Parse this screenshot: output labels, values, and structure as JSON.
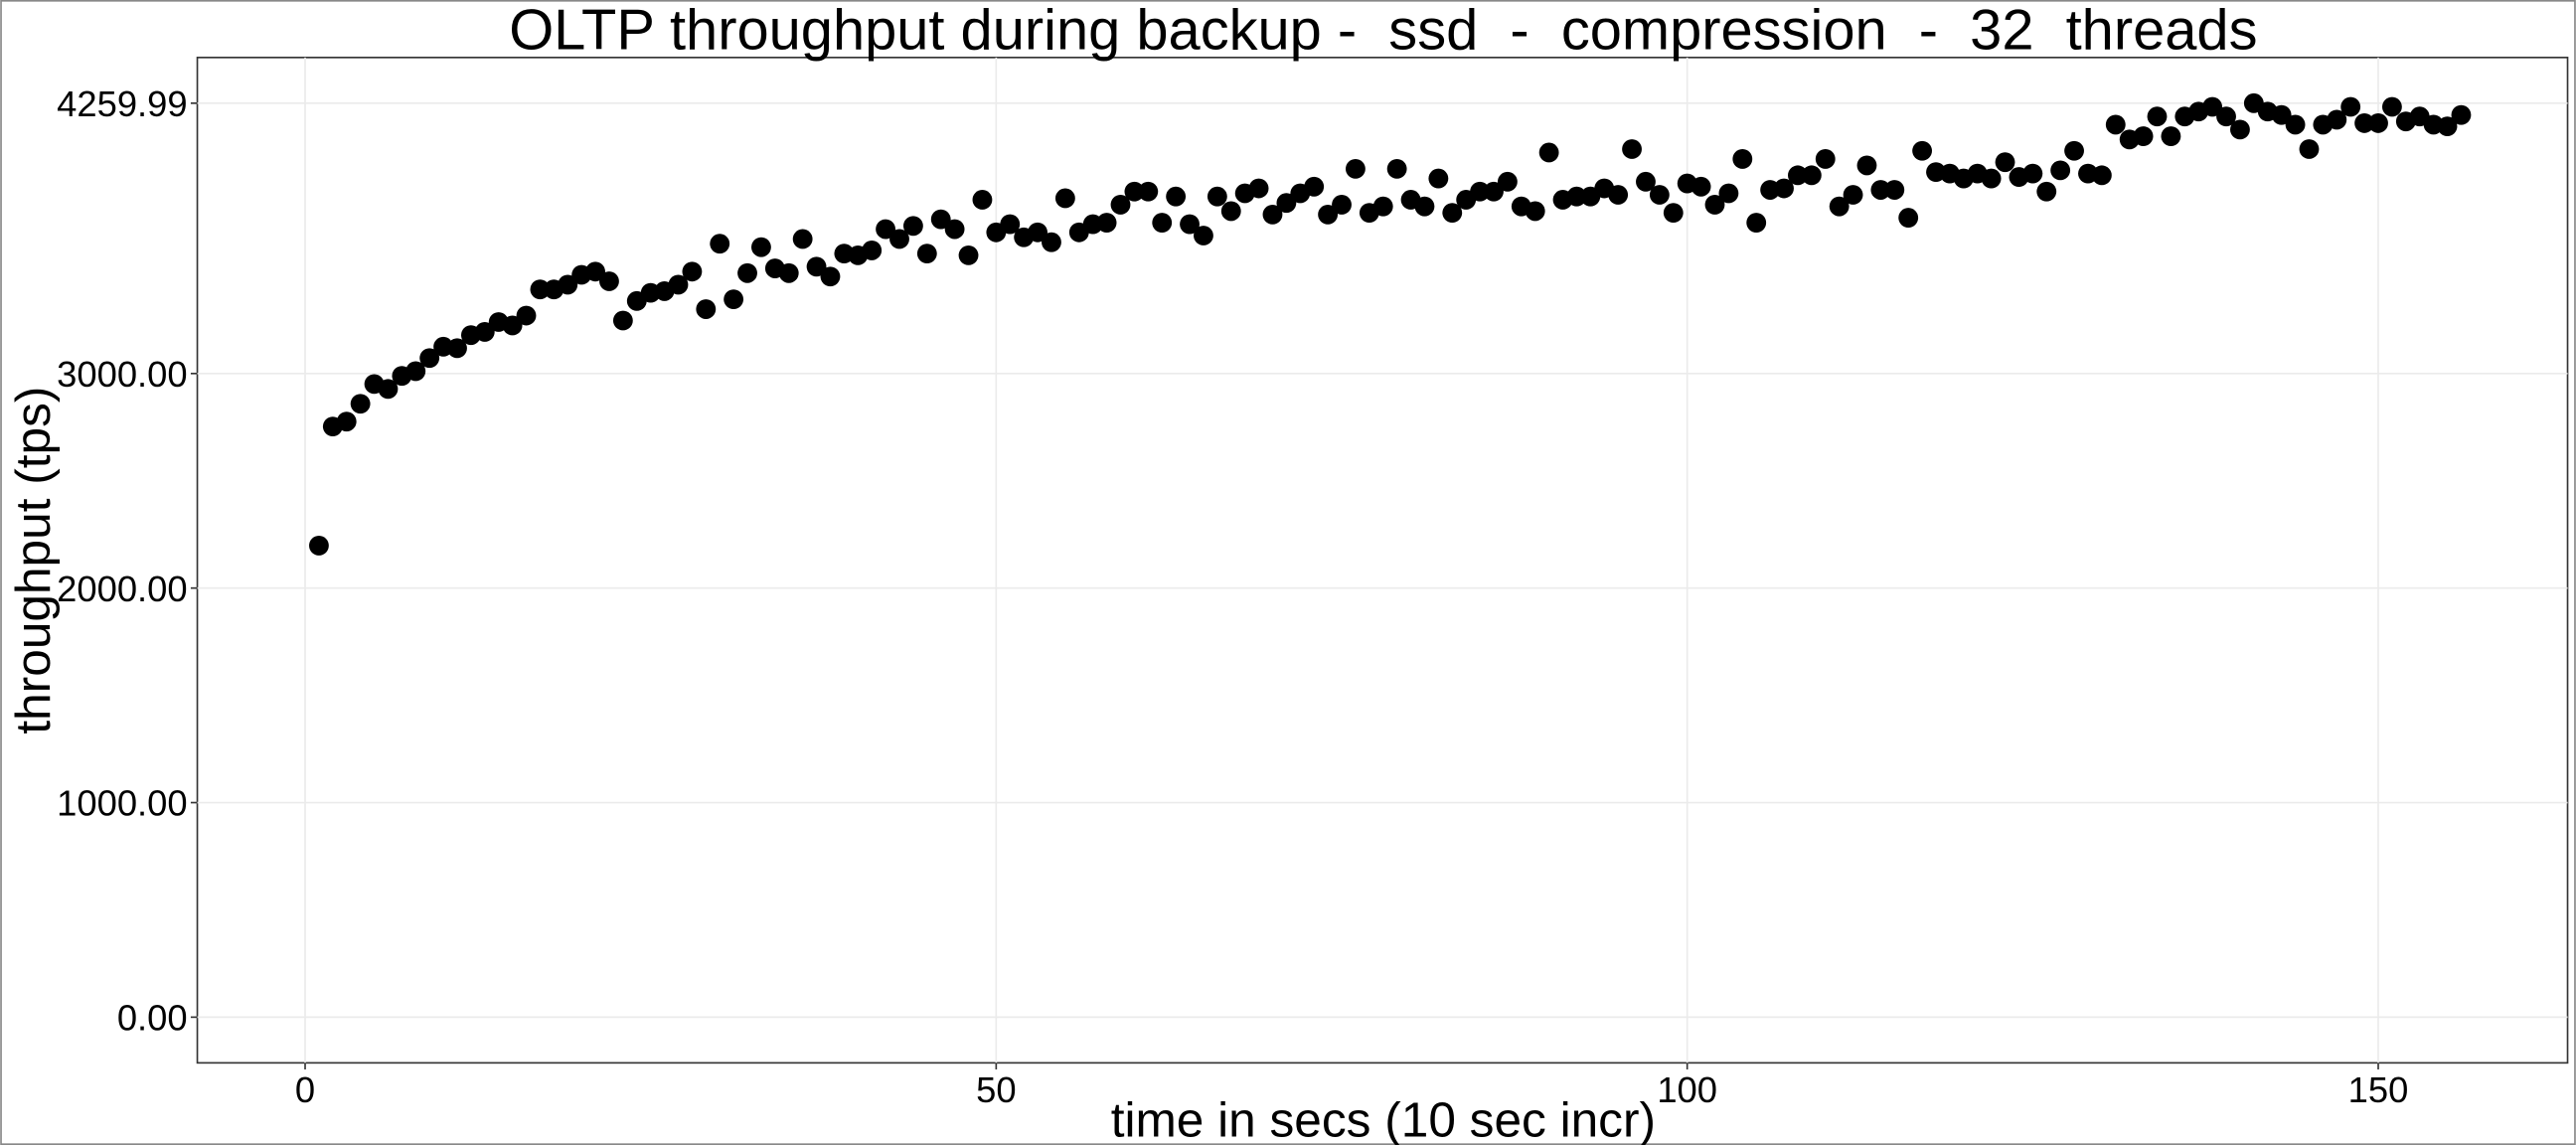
{
  "chart_data": {
    "type": "scatter",
    "title": "OLTP throughput during backup -  ssd  -  compression  -  32  threads",
    "x_label": "time in secs (10 sec incr)",
    "y_label": "throughput (tps)",
    "color": "#000000",
    "grid": true,
    "xlim": [
      -7.8,
      163.7
    ],
    "ylim": [
      -213,
      4473
    ],
    "xticks": [
      0,
      50,
      100,
      150
    ],
    "yticks": [
      {
        "value": 0,
        "label": "0.00"
      },
      {
        "value": 1000,
        "label": "1000.00"
      },
      {
        "value": 2000,
        "label": "2000.00"
      },
      {
        "value": 3000,
        "label": "3000.00"
      },
      {
        "value": 4259.99,
        "label": "4259.99"
      }
    ],
    "x": [
      1,
      2,
      3,
      4,
      5,
      6,
      7,
      8,
      9,
      10,
      11,
      12,
      13,
      14,
      15,
      16,
      17,
      18,
      19,
      20,
      21,
      22,
      23,
      24,
      25,
      26,
      27,
      28,
      29,
      30,
      31,
      32,
      33,
      34,
      35,
      36,
      37,
      38,
      39,
      40,
      41,
      42,
      43,
      44,
      45,
      46,
      47,
      48,
      49,
      50,
      51,
      52,
      53,
      54,
      55,
      56,
      57,
      58,
      59,
      60,
      61,
      62,
      63,
      64,
      65,
      66,
      67,
      68,
      69,
      70,
      71,
      72,
      73,
      74,
      75,
      76,
      77,
      78,
      79,
      80,
      81,
      82,
      83,
      84,
      85,
      86,
      87,
      88,
      89,
      90,
      91,
      92,
      93,
      94,
      95,
      96,
      97,
      98,
      99,
      100,
      101,
      102,
      103,
      104,
      105,
      106,
      107,
      108,
      109,
      110,
      111,
      112,
      113,
      114,
      115,
      116,
      117,
      118,
      119,
      120,
      121,
      122,
      123,
      124,
      125,
      126,
      127,
      128,
      129,
      130,
      131,
      132,
      133,
      134,
      135,
      136,
      137,
      138,
      139,
      140,
      141,
      142,
      143,
      144,
      145,
      146,
      147,
      148,
      149,
      150,
      151,
      152,
      153,
      154,
      155,
      156
    ],
    "values": [
      2198,
      2753,
      2776,
      2859,
      2951,
      2928,
      2989,
      3011,
      3072,
      3125,
      3118,
      3179,
      3194,
      3240,
      3224,
      3270,
      3392,
      3392,
      3414,
      3460,
      3475,
      3430,
      3247,
      3338,
      3376,
      3384,
      3414,
      3475,
      3300,
      3605,
      3346,
      3468,
      3589,
      3490,
      3468,
      3627,
      3498,
      3452,
      3559,
      3551,
      3574,
      3673,
      3627,
      3688,
      3559,
      3719,
      3673,
      3551,
      3810,
      3658,
      3696,
      3635,
      3658,
      3612,
      3817,
      3658,
      3696,
      3703,
      3787,
      3848,
      3848,
      3703,
      3825,
      3696,
      3643,
      3825,
      3757,
      3840,
      3863,
      3741,
      3795,
      3840,
      3871,
      3741,
      3787,
      3954,
      3749,
      3779,
      3954,
      3810,
      3779,
      3909,
      3749,
      3810,
      3848,
      3848,
      3894,
      3779,
      3757,
      4030,
      3810,
      3825,
      3825,
      3863,
      3833,
      4046,
      3894,
      3833,
      3749,
      3886,
      3871,
      3787,
      3840,
      4000,
      3703,
      3856,
      3863,
      3924,
      3924,
      4000,
      3779,
      3833,
      3970,
      3856,
      3856,
      3726,
      4038,
      3939,
      3932,
      3909,
      3932,
      3909,
      3985,
      3916,
      3932,
      3848,
      3947,
      4038,
      3932,
      3924,
      4160,
      4091,
      4106,
      4198,
      4106,
      4198,
      4221,
      4243,
      4198,
      4137,
      4259.99,
      4221,
      4205,
      4160,
      4046,
      4160,
      4183,
      4243,
      4167,
      4167,
      4243,
      4175,
      4198,
      4160,
      4152,
      4205
    ]
  }
}
